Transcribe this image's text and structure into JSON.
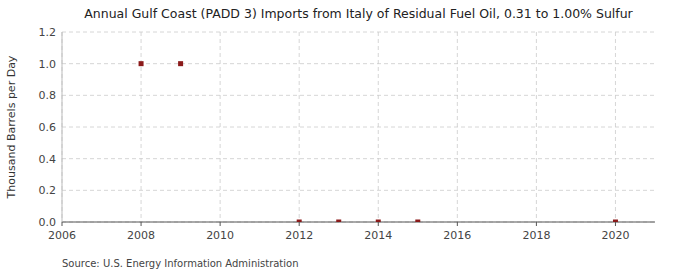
{
  "chart_data": {
    "type": "scatter",
    "title": "Annual Gulf Coast (PADD 3) Imports from Italy of Residual Fuel Oil, 0.31 to 1.00% Sulfur",
    "y_label": "Thousand Barrels per Day",
    "source": "Source: U.S. Energy Information Administration",
    "x": [
      2008,
      2009,
      2012,
      2013,
      2014,
      2015,
      2020
    ],
    "values": [
      1.0,
      1.0,
      0.0,
      0.0,
      0.0,
      0.0,
      0.0
    ],
    "color": "#8b1a1a",
    "marker": "square",
    "xlim": [
      2006,
      2021
    ],
    "ylim": [
      0.0,
      1.2
    ],
    "xticks": [
      2006,
      2008,
      2010,
      2012,
      2014,
      2016,
      2018,
      2020
    ],
    "yticks": [
      {
        "value": 0.0,
        "label": "0.0"
      },
      0.2,
      0.4,
      0.6,
      0.8,
      {
        "value": 1.0,
        "label": "1.0"
      },
      1.2
    ],
    "grid": true
  }
}
